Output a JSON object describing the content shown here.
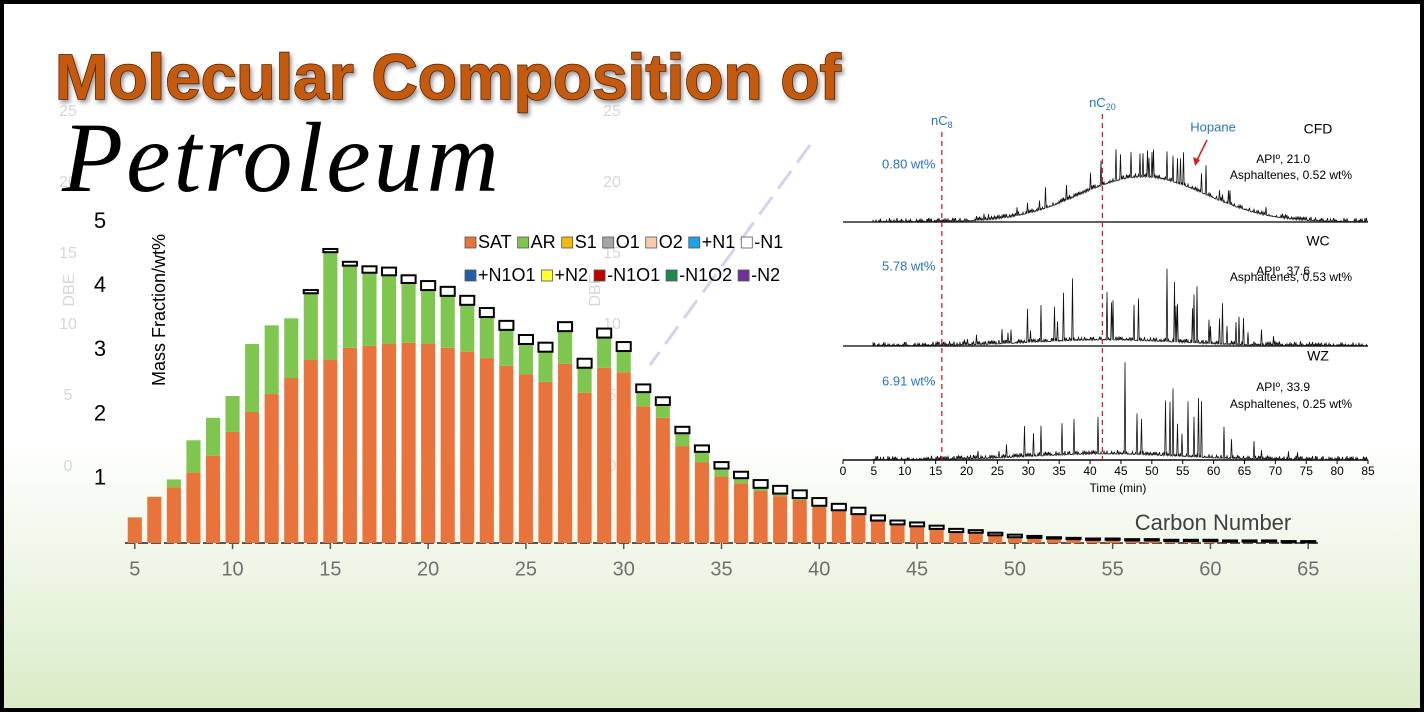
{
  "header": {
    "title": "Molecular Composition of",
    "subtitle": "Petroleum"
  },
  "background": {
    "ylabel": "DBE",
    "yticks": [
      0,
      5,
      10,
      15,
      20,
      25
    ]
  },
  "chart_data": [
    {
      "type": "bar",
      "stacked": true,
      "ylabel": "Mass Fraction/wt%",
      "xlabel": "Carbon Number",
      "x": [
        5,
        6,
        7,
        8,
        9,
        10,
        11,
        12,
        13,
        14,
        15,
        16,
        17,
        18,
        19,
        20,
        21,
        22,
        23,
        24,
        25,
        26,
        27,
        28,
        29,
        30,
        31,
        32,
        33,
        34,
        35,
        36,
        37,
        38,
        39,
        40,
        41,
        42,
        43,
        44,
        45,
        46,
        47,
        48,
        49,
        50,
        51,
        52,
        53,
        54,
        55,
        56,
        57,
        58,
        59,
        60,
        61,
        62,
        63,
        64,
        65
      ],
      "xlim": [
        4.5,
        65.5
      ],
      "xticks": [
        5,
        10,
        15,
        20,
        25,
        30,
        35,
        40,
        45,
        50,
        55,
        60,
        65
      ],
      "ylim": [
        0,
        5
      ],
      "yticks": [
        1,
        2,
        3,
        4,
        5
      ],
      "series": [
        {
          "name": "SAT",
          "color": "#e8743b",
          "values": [
            0.4,
            0.72,
            0.87,
            1.1,
            1.36,
            1.73,
            2.04,
            2.32,
            2.57,
            2.85,
            2.85,
            3.04,
            3.07,
            3.1,
            3.12,
            3.1,
            3.04,
            2.98,
            2.88,
            2.76,
            2.63,
            2.51,
            2.79,
            2.34,
            2.73,
            2.66,
            2.13,
            1.95,
            1.51,
            1.26,
            1.04,
            0.93,
            0.81,
            0.73,
            0.67,
            0.56,
            0.5,
            0.44,
            0.34,
            0.28,
            0.25,
            0.22,
            0.17,
            0.16,
            0.12,
            0.09,
            0.08,
            0.07,
            0.06,
            0.05,
            0.05,
            0.04,
            0.04,
            0.03,
            0.03,
            0.03,
            0.02,
            0.02,
            0.02,
            0.01,
            0.01
          ]
        },
        {
          "name": "AR",
          "color": "#7fc64f",
          "values": [
            0,
            0,
            0.12,
            0.5,
            0.59,
            0.56,
            1.06,
            1.07,
            0.93,
            1.04,
            1.68,
            1.28,
            1.14,
            1.07,
            0.93,
            0.84,
            0.81,
            0.73,
            0.64,
            0.56,
            0.47,
            0.47,
            0.51,
            0.39,
            0.47,
            0.33,
            0.22,
            0.2,
            0.2,
            0.16,
            0.12,
            0.08,
            0.05,
            0.04,
            0.03,
            0.02,
            0.01,
            0.01,
            0.01,
            0.01,
            0.01,
            0,
            0,
            0,
            0,
            0,
            0,
            0,
            0,
            0,
            0,
            0,
            0,
            0,
            0,
            0,
            0,
            0,
            0,
            0,
            0
          ]
        },
        {
          "name": "S1",
          "color": "#f2b90f",
          "values": [
            0,
            0,
            0,
            0,
            0,
            0,
            0,
            0,
            0,
            0,
            0,
            0,
            0,
            0,
            0,
            0,
            0,
            0,
            0,
            0,
            0,
            0,
            0,
            0,
            0,
            0,
            0,
            0,
            0,
            0,
            0,
            0,
            0,
            0,
            0,
            0,
            0,
            0,
            0,
            0,
            0,
            0,
            0,
            0,
            0,
            0,
            0,
            0,
            0,
            0,
            0,
            0,
            0,
            0,
            0,
            0,
            0,
            0,
            0,
            0,
            0
          ]
        },
        {
          "name": "O1",
          "color": "#a6a6a6",
          "values": [
            0,
            0,
            0,
            0,
            0,
            0,
            0,
            0,
            0,
            0,
            0,
            0,
            0,
            0,
            0,
            0,
            0,
            0,
            0,
            0,
            0,
            0,
            0,
            0,
            0,
            0,
            0,
            0,
            0,
            0,
            0,
            0,
            0,
            0,
            0,
            0,
            0,
            0,
            0,
            0,
            0,
            0,
            0,
            0,
            0,
            0,
            0,
            0,
            0,
            0,
            0,
            0,
            0,
            0,
            0,
            0,
            0,
            0,
            0,
            0,
            0
          ]
        },
        {
          "name": "O2",
          "color": "#f8cbad",
          "values": [
            0,
            0,
            0,
            0,
            0,
            0,
            0,
            0,
            0,
            0,
            0,
            0,
            0,
            0,
            0,
            0,
            0,
            0,
            0,
            0,
            0,
            0,
            0,
            0,
            0,
            0,
            0,
            0,
            0,
            0,
            0,
            0,
            0,
            0,
            0,
            0,
            0,
            0,
            0,
            0,
            0,
            0,
            0,
            0,
            0,
            0,
            0,
            0,
            0,
            0,
            0,
            0,
            0,
            0,
            0,
            0,
            0,
            0,
            0,
            0,
            0
          ]
        },
        {
          "name": "+N1",
          "color": "#1ea1e6",
          "values": [
            0,
            0,
            0,
            0,
            0,
            0,
            0,
            0,
            0,
            0,
            0,
            0,
            0,
            0,
            0,
            0,
            0,
            0,
            0,
            0,
            0,
            0,
            0,
            0,
            0,
            0,
            0,
            0,
            0,
            0,
            0,
            0,
            0,
            0,
            0,
            0,
            0,
            0,
            0,
            0,
            0,
            0,
            0,
            0,
            0,
            0,
            0,
            0,
            0,
            0,
            0,
            0,
            0,
            0,
            0,
            0,
            0,
            0,
            0,
            0,
            0
          ]
        },
        {
          "name": "-N1",
          "color": "#ffffff",
          "values": [
            0,
            0,
            0,
            0,
            0,
            0,
            0,
            0,
            0,
            0.05,
            0.05,
            0.06,
            0.1,
            0.12,
            0.12,
            0.14,
            0.14,
            0.14,
            0.14,
            0.14,
            0.14,
            0.14,
            0.14,
            0.14,
            0.14,
            0.14,
            0.12,
            0.12,
            0.1,
            0.1,
            0.1,
            0.1,
            0.12,
            0.12,
            0.12,
            0.12,
            0.1,
            0.1,
            0.08,
            0.06,
            0.06,
            0.05,
            0.05,
            0.04,
            0.04,
            0.04,
            0.03,
            0.02,
            0.02,
            0.02,
            0.02,
            0.02,
            0.02,
            0.02,
            0.02,
            0.02,
            0.02,
            0.02,
            0.02,
            0.02,
            0.02
          ]
        },
        {
          "name": "+N1O1",
          "color": "#1f5ea8",
          "values": [
            0,
            0,
            0,
            0,
            0,
            0,
            0,
            0,
            0,
            0,
            0,
            0,
            0,
            0,
            0,
            0,
            0,
            0,
            0,
            0,
            0,
            0,
            0,
            0,
            0,
            0,
            0,
            0,
            0,
            0,
            0,
            0,
            0,
            0,
            0,
            0,
            0,
            0,
            0,
            0,
            0,
            0,
            0,
            0,
            0,
            0,
            0,
            0,
            0,
            0,
            0,
            0,
            0,
            0,
            0,
            0,
            0,
            0,
            0,
            0,
            0
          ]
        },
        {
          "name": "+N2",
          "color": "#ffff33",
          "values": [
            0,
            0,
            0,
            0,
            0,
            0,
            0,
            0,
            0,
            0,
            0,
            0,
            0,
            0,
            0,
            0,
            0,
            0,
            0,
            0,
            0,
            0,
            0,
            0,
            0,
            0,
            0,
            0,
            0,
            0,
            0,
            0,
            0,
            0,
            0,
            0,
            0,
            0,
            0,
            0,
            0,
            0,
            0,
            0,
            0,
            0,
            0,
            0,
            0,
            0,
            0,
            0,
            0,
            0,
            0,
            0,
            0,
            0,
            0,
            0,
            0
          ]
        },
        {
          "name": "-N1O1",
          "color": "#c00000",
          "values": [
            0,
            0,
            0,
            0,
            0,
            0,
            0,
            0,
            0,
            0,
            0,
            0,
            0,
            0,
            0,
            0,
            0,
            0,
            0,
            0,
            0,
            0,
            0,
            0,
            0,
            0,
            0,
            0,
            0,
            0,
            0,
            0,
            0,
            0,
            0,
            0,
            0,
            0,
            0,
            0,
            0,
            0,
            0,
            0,
            0,
            0,
            0,
            0,
            0,
            0,
            0,
            0,
            0,
            0,
            0,
            0,
            0,
            0,
            0,
            0,
            0
          ]
        },
        {
          "name": "-N1O2",
          "color": "#1a8a4a",
          "values": [
            0,
            0,
            0,
            0,
            0,
            0,
            0,
            0,
            0,
            0,
            0,
            0,
            0,
            0,
            0,
            0,
            0,
            0,
            0,
            0,
            0,
            0,
            0,
            0,
            0,
            0,
            0,
            0,
            0,
            0,
            0,
            0,
            0,
            0,
            0,
            0,
            0,
            0,
            0,
            0,
            0,
            0,
            0,
            0,
            0,
            0,
            0,
            0,
            0,
            0,
            0,
            0,
            0,
            0,
            0,
            0,
            0,
            0,
            0,
            0,
            0
          ]
        },
        {
          "name": "-N2",
          "color": "#7030a0",
          "values": [
            0,
            0,
            0,
            0,
            0,
            0,
            0,
            0,
            0,
            0,
            0,
            0,
            0,
            0,
            0,
            0,
            0,
            0,
            0,
            0,
            0,
            0,
            0,
            0,
            0,
            0,
            0,
            0,
            0,
            0,
            0,
            0,
            0,
            0,
            0,
            0,
            0,
            0,
            0,
            0,
            0,
            0,
            0,
            0,
            0,
            0,
            0,
            0,
            0,
            0,
            0,
            0,
            0,
            0,
            0,
            0,
            0,
            0,
            0,
            0,
            0
          ]
        }
      ]
    },
    {
      "type": "chromatogram",
      "xlabel": "Time (min)",
      "xlim": [
        0,
        85
      ],
      "xticks": [
        0,
        5,
        10,
        15,
        20,
        25,
        30,
        35,
        40,
        45,
        50,
        55,
        60,
        65,
        70,
        75,
        80,
        85
      ],
      "markers": [
        {
          "label": "nC",
          "sub": "8",
          "x": 16
        },
        {
          "label": "nC",
          "sub": "20",
          "x": 42
        }
      ],
      "annotation": {
        "text": "Hopane",
        "x": 57
      },
      "panels": [
        {
          "name": "CFD",
          "api": "APIº, 21.0",
          "asphaltenes": "Asphaltenes,  0.52 wt%",
          "yield": "0.80 wt%"
        },
        {
          "name": "WC",
          "api": "APIº, 37.6",
          "asphaltenes": "Asphaltenes,  0.53 wt%",
          "yield": "5.78 wt%"
        },
        {
          "name": "WZ",
          "api": "APIº, 33.9",
          "asphaltenes": "Asphaltenes,  0.25 wt%",
          "yield": "6.91 wt%"
        }
      ]
    }
  ]
}
